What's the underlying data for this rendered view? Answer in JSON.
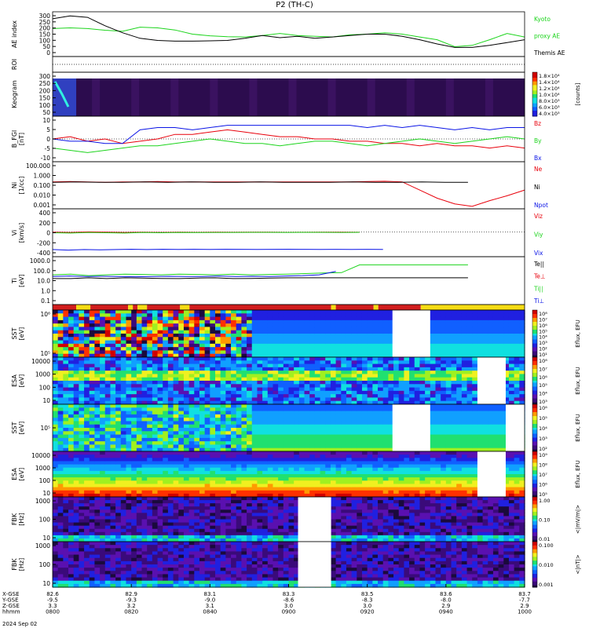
{
  "title": "P2 (TH-C)",
  "date_line": "2024 Sep 02",
  "footer_row_labels": [
    "X-GSE",
    "Y-GSE",
    "Z-GSE",
    "hhmm"
  ],
  "footer_ticks": [
    {
      "x": "82.6",
      "y": "-9.5",
      "z": "3.3",
      "t": "0800"
    },
    {
      "x": "82.9",
      "y": "-9.3",
      "z": "3.2",
      "t": "0820"
    },
    {
      "x": "83.1",
      "y": "-9.0",
      "z": "3.1",
      "t": "0840"
    },
    {
      "x": "83.3",
      "y": "-8.6",
      "z": "3.0",
      "t": "0900"
    },
    {
      "x": "83.5",
      "y": "-8.3",
      "z": "3.0",
      "t": "0920"
    },
    {
      "x": "83.6",
      "y": "-8.0",
      "z": "2.9",
      "t": "0940"
    },
    {
      "x": "83.7",
      "y": "-7.7",
      "z": "2.9",
      "t": "1000"
    }
  ],
  "colors": {
    "red": "#e8000b",
    "green": "#1cd41c",
    "blue": "#0a14e6",
    "black": "#000000",
    "flag_red": "#d21e1e",
    "flag_yellow": "#f5dc14"
  },
  "panels": [
    {
      "key": "ae",
      "ylabel": [
        "AE index"
      ],
      "ticks": [
        "300",
        "250",
        "200",
        "150",
        "100",
        "50",
        "0"
      ],
      "legend": [
        {
          "text": "Kyoto",
          "color": "green"
        },
        {
          "text": "proxy AE",
          "color": "green"
        },
        {
          "text": "Themis AE",
          "color": "black"
        }
      ]
    },
    {
      "key": "roi",
      "ylabel": [
        "ROI"
      ],
      "ticks": [],
      "legend": []
    },
    {
      "key": "keogram",
      "ylabel": [
        "Keogram"
      ],
      "ticks": [
        "300",
        "250",
        "200",
        "150",
        "100",
        "50"
      ],
      "colorbar_ticks": [
        "1.8×10⁴",
        "1.4×10⁴",
        "1.2×10⁴",
        "1.0×10⁴",
        "8.0×10³",
        "6.0×10³",
        "4.0×10³"
      ],
      "colorbar_label": "[counts]",
      "legend": []
    },
    {
      "key": "bfgl",
      "ylabel": [
        "B_FGl",
        "[nT]"
      ],
      "ticks": [
        "10",
        "5",
        "0",
        "-5",
        "-10"
      ],
      "legend": [
        {
          "text": "Bz",
          "color": "red"
        },
        {
          "text": "By",
          "color": "green"
        },
        {
          "text": "Bx",
          "color": "blue"
        }
      ]
    },
    {
      "key": "ni",
      "ylabel": [
        "Ni",
        "[1/cc]"
      ],
      "ticks": [
        "100.000",
        "1.000",
        "0.100",
        "0.010",
        "0.001"
      ],
      "legend": [
        {
          "text": "Ne",
          "color": "red"
        },
        {
          "text": "Ni",
          "color": "black"
        },
        {
          "text": "Npot",
          "color": "blue"
        }
      ]
    },
    {
      "key": "vi",
      "ylabel": [
        "Vi",
        "[km/s]"
      ],
      "ticks": [
        "400",
        "200",
        "0",
        "-200",
        "-400"
      ],
      "legend": [
        {
          "text": "Viz",
          "color": "red"
        },
        {
          "text": "Viy",
          "color": "green"
        },
        {
          "text": "Vix",
          "color": "blue"
        }
      ]
    },
    {
      "key": "ti",
      "ylabel": [
        "Ti",
        "[eV]"
      ],
      "ticks": [
        "1000.0",
        "100.0",
        "10.0",
        "1.0",
        "0.1"
      ],
      "legend": [
        {
          "text": "Te||",
          "color": "black"
        },
        {
          "text": "Te⊥",
          "color": "red"
        },
        {
          "text": "Ti||",
          "color": "green"
        },
        {
          "text": "Ti⊥",
          "color": "blue"
        }
      ]
    },
    {
      "key": "flags",
      "ylabel": [],
      "ticks": [],
      "legend": []
    },
    {
      "key": "sst_i",
      "ylabel": [
        "SST",
        "[eV]"
      ],
      "ticks": [
        "10⁶",
        "10⁵"
      ],
      "colorbar_ticks": [
        "10⁸",
        "10⁷",
        "10⁶",
        "10⁵",
        "10⁴",
        "10³",
        "10²",
        "10¹"
      ],
      "colorbar_label": "Eflux, EFU",
      "legend": []
    },
    {
      "key": "esa_i",
      "ylabel": [
        "ESA",
        "[eV]"
      ],
      "ticks": [
        "10000",
        "1000",
        "100",
        "10"
      ],
      "colorbar_ticks": [
        "10⁸",
        "10⁷",
        "10⁶",
        "10⁵",
        "10⁴",
        "10³"
      ],
      "colorbar_label": "Eflux, EFU",
      "legend": []
    },
    {
      "key": "sst_e",
      "ylabel": [
        "SST",
        "[eV]"
      ],
      "ticks": [
        "10⁵"
      ],
      "colorbar_ticks": [
        "10⁶",
        "10⁵",
        "10⁴",
        "10³",
        "10²"
      ],
      "colorbar_label": "Eflux, EFU",
      "legend": []
    },
    {
      "key": "esa_e",
      "ylabel": [
        "ESA",
        "[eV]"
      ],
      "ticks": [
        "10000",
        "1000",
        "100",
        "10"
      ],
      "colorbar_ticks": [
        "10⁹",
        "10⁸",
        "10⁷",
        "10⁶",
        "10⁵"
      ],
      "colorbar_label": "Eflux, EFU",
      "legend": []
    },
    {
      "key": "fbk_e",
      "ylabel": [
        "FBK",
        "[Hz]"
      ],
      "ticks": [
        "1000",
        "100",
        "10"
      ],
      "colorbar_ticks": [
        "1.00",
        "0.10",
        "0.01"
      ],
      "colorbar_label": "<|mV/m|>",
      "legend": []
    },
    {
      "key": "fbk_b",
      "ylabel": [
        "FBK",
        "[Hz]"
      ],
      "ticks": [
        "1000",
        "100",
        "10"
      ],
      "colorbar_ticks": [
        "0.100",
        "0.010",
        "0.001"
      ],
      "colorbar_label": "<|nT|>",
      "legend": []
    }
  ],
  "chart_data": {
    "type": "line",
    "title": "P2 (TH-C)",
    "x_time_ticks": [
      "0800",
      "0820",
      "0840",
      "0900",
      "0920",
      "0940",
      "1000"
    ],
    "series": [
      {
        "name": "Kyoto proxy AE",
        "panel": "ae",
        "color": "green",
        "y": [
          200,
          205,
          200,
          188,
          180,
          210,
          205,
          190,
          160,
          148,
          142,
          140,
          150,
          165,
          150,
          145,
          140,
          155,
          160,
          170,
          160,
          140,
          120,
          70,
          80,
          120,
          165,
          140
        ]
      },
      {
        "name": "Themis AE",
        "panel": "ae",
        "color": "black",
        "y": [
          270,
          290,
          280,
          220,
          170,
          130,
          115,
          110,
          110,
          112,
          115,
          130,
          150,
          135,
          145,
          130,
          140,
          150,
          160,
          160,
          145,
          120,
          90,
          65,
          65,
          80,
          100,
          120
        ]
      },
      {
        "name": "Bz",
        "panel": "bfgl",
        "color": "red",
        "y": [
          0,
          1,
          -1,
          0,
          -2,
          -1,
          0,
          2,
          2,
          3,
          4,
          3,
          2,
          1,
          1,
          0,
          0,
          -1,
          -1,
          -2,
          -2,
          -3,
          -2,
          -3,
          -3,
          -4,
          -3,
          -4
        ]
      },
      {
        "name": "By",
        "panel": "bfgl",
        "color": "green",
        "y": [
          -4,
          -5,
          -6,
          -5,
          -4,
          -3,
          -3,
          -2,
          -1,
          0,
          -1,
          -2,
          -2,
          -3,
          -2,
          -1,
          -1,
          -2,
          -3,
          -2,
          -1,
          0,
          -1,
          -2,
          -1,
          0,
          1,
          0
        ]
      },
      {
        "name": "Bx",
        "panel": "bfgl",
        "color": "blue",
        "y": [
          0,
          -1,
          -1,
          -2,
          -2,
          4,
          5,
          5,
          4,
          5,
          6,
          6,
          6,
          6,
          6,
          6,
          6,
          6,
          5,
          6,
          5,
          6,
          5,
          4,
          5,
          4,
          5,
          5
        ]
      },
      {
        "name": "Ne",
        "panel": "ni",
        "color": "red",
        "y": [
          1,
          1.1,
          1,
          0.9,
          1,
          1,
          1.1,
          1,
          1,
          1,
          1,
          1,
          1,
          1,
          1,
          1,
          1,
          1,
          1.1,
          1.2,
          1,
          0.1,
          0.01,
          0.002,
          0.001,
          0.005,
          0.02,
          0.1
        ]
      },
      {
        "name": "Ni",
        "panel": "ni",
        "color": "black",
        "y": [
          0.9,
          1,
          0.9,
          0.9,
          1,
          0.9,
          1,
          0.9,
          0.9,
          1,
          0.9,
          0.9,
          0.9,
          1,
          0.9,
          0.9,
          1,
          0.9,
          0.9
        ]
      },
      {
        "name": "Viz",
        "panel": "vi",
        "color": "red",
        "y": [
          -5,
          -10,
          0,
          -5,
          -10,
          -5,
          -10,
          -5,
          -8,
          -5,
          -6,
          -5,
          -5,
          -8,
          -6,
          -5,
          -5,
          -6
        ]
      },
      {
        "name": "Viy",
        "panel": "vi",
        "color": "green",
        "y": [
          -15,
          -20,
          -10,
          -15,
          -20,
          -10,
          -15,
          -10,
          -12,
          -10,
          -10,
          -8,
          -8,
          -10,
          -8,
          -8,
          -10,
          -8
        ]
      },
      {
        "name": "Vix",
        "panel": "vi",
        "color": "blue",
        "y": [
          -320,
          -330,
          -320,
          -325,
          -320,
          -315,
          -320,
          -315,
          -318,
          -315,
          -318,
          -315,
          -316,
          -318,
          -316,
          -315,
          -316,
          -318,
          -316,
          -318,
          -316,
          -318
        ]
      },
      {
        "name": "Ti||",
        "panel": "ti",
        "color": "green",
        "y": [
          60,
          70,
          50,
          60,
          70,
          65,
          60,
          70,
          65,
          60,
          70,
          60,
          65,
          70,
          80,
          90,
          100,
          600,
          600,
          600,
          600,
          600,
          600,
          600
        ]
      },
      {
        "name": "Ti⊥",
        "panel": "ti",
        "color": "blue",
        "y": [
          40,
          45,
          40,
          42,
          40,
          38,
          40,
          42,
          40,
          40,
          45,
          40,
          42,
          40,
          45,
          50,
          60,
          130
        ]
      },
      {
        "name": "Te||",
        "panel": "ti",
        "color": "black",
        "y": [
          25,
          25,
          30,
          25,
          30,
          28,
          26,
          25,
          28,
          30,
          25,
          26,
          28,
          30,
          30,
          30,
          30,
          30,
          30,
          30,
          30,
          30,
          30,
          30
        ]
      }
    ]
  }
}
